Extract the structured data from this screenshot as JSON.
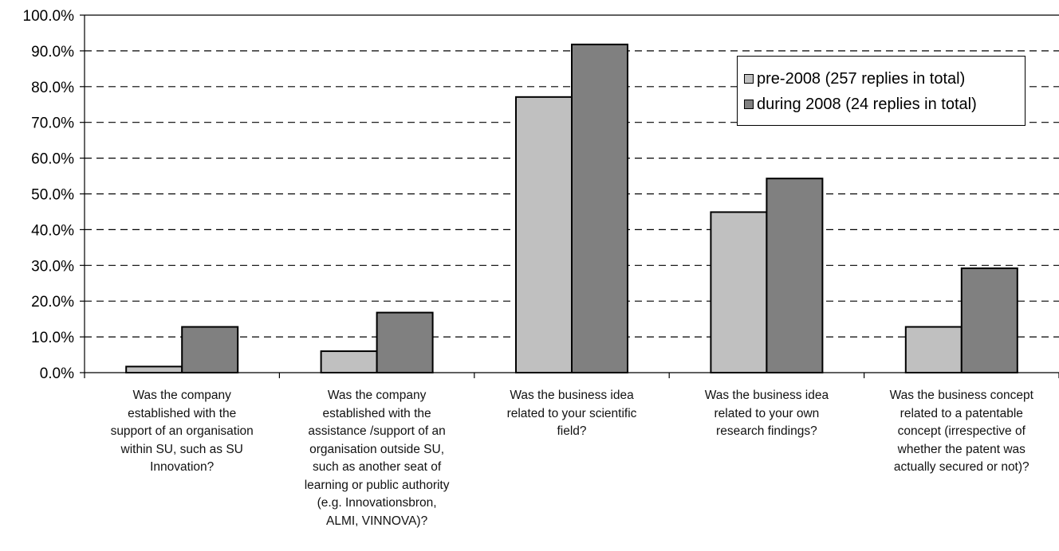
{
  "chart_data": {
    "type": "bar",
    "categories": [
      [
        "Was the company",
        "established with the",
        "support of an organisation",
        "within SU, such as SU",
        "Innovation?"
      ],
      [
        "Was the company",
        "established with the",
        "assistance /support of an",
        "organisation outside SU,",
        "such as another seat of",
        "learning or public authority",
        "(e.g. Innovationsbron,",
        "ALMI, VINNOVA)?"
      ],
      [
        "Was the business idea",
        "related to your scientific",
        "field?"
      ],
      [
        "Was the business idea",
        "related to your own",
        "research findings?"
      ],
      [
        "Was the business concept",
        "related to a patentable",
        "concept (irrespective of",
        "whether the patent was",
        "actually secured or not)?"
      ]
    ],
    "series": [
      {
        "name": "pre-2008 (257 replies in total)",
        "color": "#c0c0c0",
        "values": [
          1.7,
          6.0,
          77.1,
          44.9,
          12.8
        ]
      },
      {
        "name": "during 2008 (24 replies in total)",
        "color": "#808080",
        "values": [
          12.8,
          16.8,
          91.8,
          54.3,
          29.2
        ]
      }
    ],
    "ylim": [
      0,
      100
    ],
    "yticks": [
      "0.0%",
      "10.0%",
      "20.0%",
      "30.0%",
      "40.0%",
      "50.0%",
      "60.0%",
      "70.0%",
      "80.0%",
      "90.0%",
      "100.0%"
    ],
    "grid": "dashed horizontal",
    "legend_position": "top-right"
  }
}
